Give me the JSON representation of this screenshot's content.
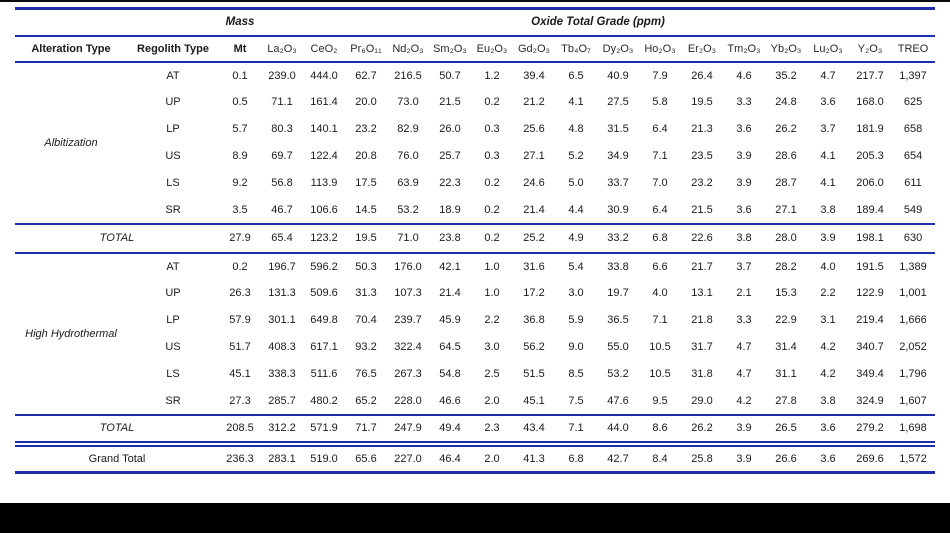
{
  "table": {
    "group_headers": {
      "mass": "Mass",
      "oxide": "Oxide Total Grade (ppm)"
    },
    "columns": [
      "Alteration Type",
      "Regolith Type",
      "Mt",
      "La₂O₃",
      "CeO₂",
      "Pr₆O₁₁",
      "Nd₂O₃",
      "Sm₂O₃",
      "Eu₂O₃",
      "Gd₂O₃",
      "Tb₄O₇",
      "Dy₂O₃",
      "Ho₂O₃",
      "Er₂O₃",
      "Tm₂O₃",
      "Yb₂O₃",
      "Lu₂O₃",
      "Y₂O₃",
      "TREO"
    ],
    "groups": [
      {
        "alteration_type": "Albitization",
        "rows": [
          {
            "regolith": "AT",
            "values": [
              "0.1",
              "239.0",
              "444.0",
              "62.7",
              "216.5",
              "50.7",
              "1.2",
              "39.4",
              "6.5",
              "40.9",
              "7.9",
              "26.4",
              "4.6",
              "35.2",
              "4.7",
              "217.7",
              "1,397"
            ]
          },
          {
            "regolith": "UP",
            "values": [
              "0.5",
              "71.1",
              "161.4",
              "20.0",
              "73.0",
              "21.5",
              "0.2",
              "21.2",
              "4.1",
              "27.5",
              "5.8",
              "19.5",
              "3.3",
              "24.8",
              "3.6",
              "168.0",
              "625"
            ]
          },
          {
            "regolith": "LP",
            "values": [
              "5.7",
              "80.3",
              "140.1",
              "23.2",
              "82.9",
              "26.0",
              "0.3",
              "25.6",
              "4.8",
              "31.5",
              "6.4",
              "21.3",
              "3.6",
              "26.2",
              "3.7",
              "181.9",
              "658"
            ]
          },
          {
            "regolith": "US",
            "values": [
              "8.9",
              "69.7",
              "122.4",
              "20.8",
              "76.0",
              "25.7",
              "0.3",
              "27.1",
              "5.2",
              "34.9",
              "7.1",
              "23.5",
              "3.9",
              "28.6",
              "4.1",
              "205.3",
              "654"
            ]
          },
          {
            "regolith": "LS",
            "values": [
              "9.2",
              "56.8",
              "113.9",
              "17.5",
              "63.9",
              "22.3",
              "0.2",
              "24.6",
              "5.0",
              "33.7",
              "7.0",
              "23.2",
              "3.9",
              "28.7",
              "4.1",
              "206.0",
              "611"
            ]
          },
          {
            "regolith": "SR",
            "values": [
              "3.5",
              "46.7",
              "106.6",
              "14.5",
              "53.2",
              "18.9",
              "0.2",
              "21.4",
              "4.4",
              "30.9",
              "6.4",
              "21.5",
              "3.6",
              "27.1",
              "3.8",
              "189.4",
              "549"
            ]
          }
        ],
        "total": {
          "label": "TOTAL",
          "values": [
            "27.9",
            "65.4",
            "123.2",
            "19.5",
            "71.0",
            "23.8",
            "0.2",
            "25.2",
            "4.9",
            "33.2",
            "6.8",
            "22.6",
            "3.8",
            "28.0",
            "3.9",
            "198.1",
            "630"
          ]
        }
      },
      {
        "alteration_type": "High Hydrothermal",
        "rows": [
          {
            "regolith": "AT",
            "values": [
              "0.2",
              "196.7",
              "596.2",
              "50.3",
              "176.0",
              "42.1",
              "1.0",
              "31.6",
              "5.4",
              "33.8",
              "6.6",
              "21.7",
              "3.7",
              "28.2",
              "4.0",
              "191.5",
              "1,389"
            ]
          },
          {
            "regolith": "UP",
            "values": [
              "26.3",
              "131.3",
              "509.6",
              "31.3",
              "107.3",
              "21.4",
              "1.0",
              "17.2",
              "3.0",
              "19.7",
              "4.0",
              "13.1",
              "2.1",
              "15.3",
              "2.2",
              "122.9",
              "1,001"
            ]
          },
          {
            "regolith": "LP",
            "values": [
              "57.9",
              "301.1",
              "649.8",
              "70.4",
              "239.7",
              "45.9",
              "2.2",
              "36.8",
              "5.9",
              "36.5",
              "7.1",
              "21.8",
              "3.3",
              "22.9",
              "3.1",
              "219.4",
              "1,666"
            ]
          },
          {
            "regolith": "US",
            "values": [
              "51.7",
              "408.3",
              "617.1",
              "93.2",
              "322.4",
              "64.5",
              "3.0",
              "56.2",
              "9.0",
              "55.0",
              "10.5",
              "31.7",
              "4.7",
              "31.4",
              "4.2",
              "340.7",
              "2,052"
            ]
          },
          {
            "regolith": "LS",
            "values": [
              "45.1",
              "338.3",
              "511.6",
              "76.5",
              "267.3",
              "54.8",
              "2.5",
              "51.5",
              "8.5",
              "53.2",
              "10.5",
              "31.8",
              "4.7",
              "31.1",
              "4.2",
              "349.4",
              "1,796"
            ]
          },
          {
            "regolith": "SR",
            "values": [
              "27.3",
              "285.7",
              "480.2",
              "65.2",
              "228.0",
              "46.6",
              "2.0",
              "45.1",
              "7.5",
              "47.6",
              "9.5",
              "29.0",
              "4.2",
              "27.8",
              "3.8",
              "324.9",
              "1,607"
            ]
          }
        ],
        "total": {
          "label": "TOTAL",
          "values": [
            "208.5",
            "312.2",
            "571.9",
            "71.7",
            "247.9",
            "49.4",
            "2.3",
            "43.4",
            "7.1",
            "44.0",
            "8.6",
            "26.2",
            "3.9",
            "26.5",
            "3.6",
            "279.2",
            "1,698"
          ]
        }
      }
    ],
    "grand_total": {
      "label": "Grand Total",
      "values": [
        "236.3",
        "283.1",
        "519.0",
        "65.6",
        "227.0",
        "46.4",
        "2.0",
        "41.3",
        "6.8",
        "42.7",
        "8.4",
        "25.8",
        "3.9",
        "26.6",
        "3.6",
        "269.6",
        "1,572"
      ]
    }
  }
}
